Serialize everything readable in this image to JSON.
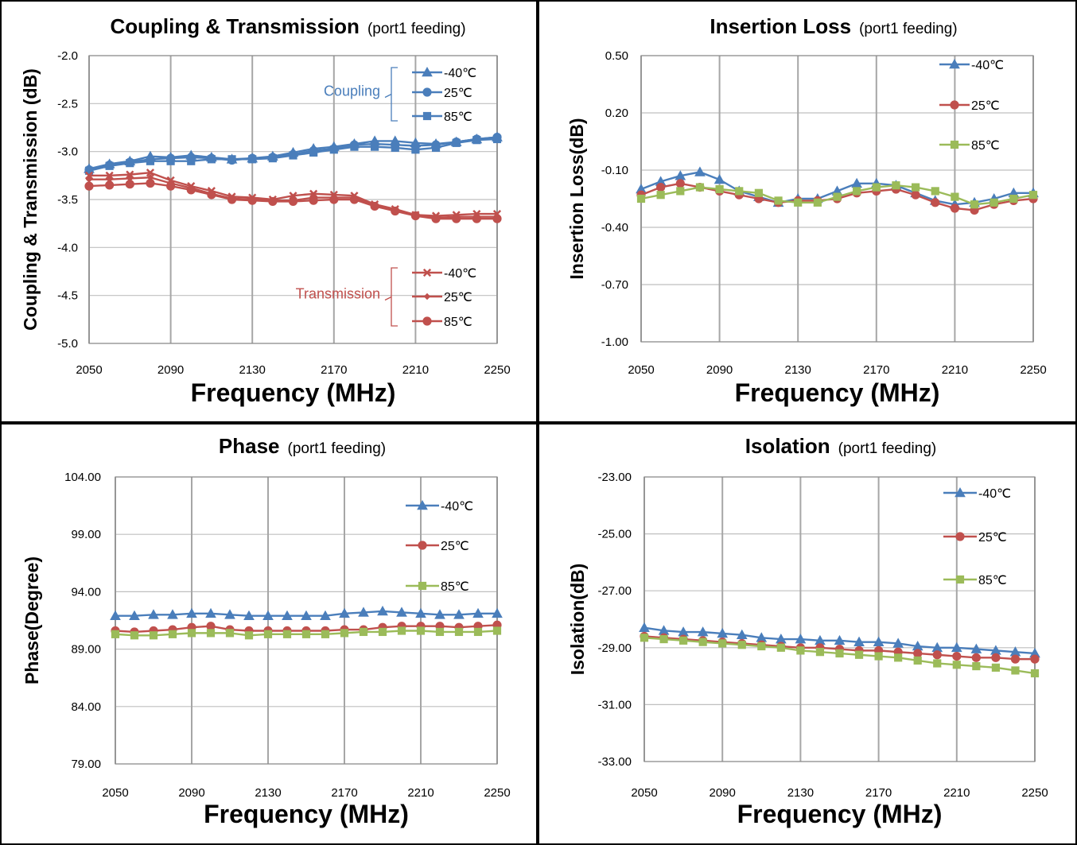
{
  "colors": {
    "blue": "#4a7ebb",
    "red": "#c0504d",
    "green": "#9bbb59"
  },
  "chart_data": [
    {
      "type": "line",
      "title": "Coupling & Transmission",
      "subtitle": "(port1 feeding)",
      "xlabel": "Frequency (MHz)",
      "ylabel": "Coupling & Transmission (dB)",
      "xlim": [
        2050,
        2250
      ],
      "ylim": [
        -5.0,
        -2.0
      ],
      "x_ticks": [
        2050,
        2090,
        2130,
        2170,
        2210,
        2250
      ],
      "x_tick_labels": [
        "2050",
        "2090",
        "2130",
        "2170",
        "2210",
        "2250"
      ],
      "y_ticks": [
        -2.0,
        -2.5,
        -3.0,
        -3.5,
        -4.0,
        -4.5,
        -5.0
      ],
      "y_tick_labels": [
        "-2.0",
        "-2.5",
        "-3.0",
        "-3.5",
        "-4.0",
        "-4.5",
        "-5.0"
      ],
      "grid": true,
      "legend_position": "right",
      "legend_groups": [
        {
          "label": "Coupling",
          "color": "#4a7ebb",
          "series": [
            0,
            1,
            2
          ]
        },
        {
          "label": "Transmission",
          "color": "#c0504d",
          "series": [
            3,
            4,
            5
          ]
        }
      ],
      "x": [
        2050,
        2060,
        2070,
        2080,
        2090,
        2100,
        2110,
        2120,
        2130,
        2140,
        2150,
        2160,
        2170,
        2180,
        2190,
        2200,
        2210,
        2220,
        2230,
        2240,
        2250
      ],
      "series": [
        {
          "name": "-40℃",
          "color": "#4a7ebb",
          "marker": "triangle",
          "values": [
            -3.18,
            -3.13,
            -3.1,
            -3.05,
            -3.06,
            -3.04,
            -3.06,
            -3.08,
            -3.07,
            -3.05,
            -3.01,
            -2.97,
            -2.95,
            -2.92,
            -2.89,
            -2.89,
            -2.91,
            -2.92,
            -2.9,
            -2.87,
            -2.85
          ]
        },
        {
          "name": "25℃",
          "color": "#4a7ebb",
          "marker": "circle",
          "values": [
            -3.19,
            -3.14,
            -3.11,
            -3.08,
            -3.07,
            -3.06,
            -3.07,
            -3.09,
            -3.07,
            -3.06,
            -3.03,
            -2.99,
            -2.97,
            -2.93,
            -2.92,
            -2.93,
            -2.94,
            -2.93,
            -2.9,
            -2.87,
            -2.85
          ]
        },
        {
          "name": "85℃",
          "color": "#4a7ebb",
          "marker": "square",
          "values": [
            -3.2,
            -3.15,
            -3.12,
            -3.1,
            -3.1,
            -3.1,
            -3.08,
            -3.08,
            -3.08,
            -3.07,
            -3.04,
            -3.01,
            -2.98,
            -2.95,
            -2.95,
            -2.96,
            -2.98,
            -2.96,
            -2.91,
            -2.88,
            -2.87
          ]
        },
        {
          "name": "-40℃",
          "color": "#c0504d",
          "marker": "x",
          "values": [
            -3.25,
            -3.25,
            -3.24,
            -3.22,
            -3.3,
            -3.36,
            -3.41,
            -3.47,
            -3.48,
            -3.5,
            -3.46,
            -3.44,
            -3.45,
            -3.46,
            -3.55,
            -3.6,
            -3.66,
            -3.67,
            -3.66,
            -3.65,
            -3.65
          ]
        },
        {
          "name": "25℃",
          "color": "#c0504d",
          "marker": "diamond",
          "values": [
            -3.29,
            -3.29,
            -3.28,
            -3.27,
            -3.33,
            -3.38,
            -3.44,
            -3.49,
            -3.5,
            -3.51,
            -3.51,
            -3.48,
            -3.48,
            -3.48,
            -3.56,
            -3.61,
            -3.66,
            -3.69,
            -3.68,
            -3.68,
            -3.68
          ]
        },
        {
          "name": "85℃",
          "color": "#c0504d",
          "marker": "circle",
          "values": [
            -3.36,
            -3.35,
            -3.34,
            -3.33,
            -3.36,
            -3.4,
            -3.45,
            -3.5,
            -3.51,
            -3.52,
            -3.52,
            -3.51,
            -3.5,
            -3.5,
            -3.57,
            -3.62,
            -3.67,
            -3.7,
            -3.7,
            -3.7,
            -3.7
          ]
        }
      ]
    },
    {
      "type": "line",
      "title": "Insertion Loss",
      "subtitle": "(port1 feeding)",
      "xlabel": "Frequency (MHz)",
      "ylabel": "Insertion Loss(dB)",
      "xlim": [
        2050,
        2250
      ],
      "ylim": [
        -1.0,
        0.5
      ],
      "x_ticks": [
        2050,
        2090,
        2130,
        2170,
        2210,
        2250
      ],
      "x_tick_labels": [
        "2050",
        "2090",
        "2130",
        "2170",
        "2210",
        "2250"
      ],
      "y_ticks": [
        0.5,
        0.2,
        -0.1,
        -0.4,
        -0.7,
        -1.0
      ],
      "y_tick_labels": [
        "0.50",
        "0.20",
        "-0.10",
        "-0.40",
        "-0.70",
        "-1.00"
      ],
      "grid": true,
      "legend_position": "top-right",
      "x": [
        2050,
        2060,
        2070,
        2080,
        2090,
        2100,
        2110,
        2120,
        2130,
        2140,
        2150,
        2160,
        2170,
        2180,
        2190,
        2200,
        2210,
        2220,
        2230,
        2240,
        2250
      ],
      "series": [
        {
          "name": "-40℃",
          "color": "#4a7ebb",
          "marker": "triangle",
          "values": [
            -0.2,
            -0.16,
            -0.13,
            -0.11,
            -0.15,
            -0.21,
            -0.24,
            -0.27,
            -0.25,
            -0.25,
            -0.21,
            -0.17,
            -0.17,
            -0.18,
            -0.22,
            -0.26,
            -0.28,
            -0.27,
            -0.25,
            -0.22,
            -0.22
          ]
        },
        {
          "name": "25℃",
          "color": "#c0504d",
          "marker": "circle",
          "values": [
            -0.23,
            -0.19,
            -0.17,
            -0.19,
            -0.21,
            -0.23,
            -0.25,
            -0.27,
            -0.26,
            -0.26,
            -0.25,
            -0.22,
            -0.21,
            -0.2,
            -0.23,
            -0.27,
            -0.3,
            -0.31,
            -0.28,
            -0.26,
            -0.25
          ]
        },
        {
          "name": "85℃",
          "color": "#9bbb59",
          "marker": "square",
          "values": [
            -0.25,
            -0.23,
            -0.21,
            -0.19,
            -0.2,
            -0.21,
            -0.22,
            -0.26,
            -0.27,
            -0.27,
            -0.24,
            -0.21,
            -0.19,
            -0.18,
            -0.19,
            -0.21,
            -0.24,
            -0.28,
            -0.27,
            -0.25,
            -0.23
          ]
        }
      ]
    },
    {
      "type": "line",
      "title": "Phase",
      "subtitle": "(port1 feeding)",
      "xlabel": "Frequency (MHz)",
      "ylabel": "Phase(Degree)",
      "xlim": [
        2050,
        2250
      ],
      "ylim": [
        79,
        104
      ],
      "x_ticks": [
        2050,
        2090,
        2130,
        2170,
        2210,
        2250
      ],
      "x_tick_labels": [
        "2050",
        "2090",
        "2130",
        "2170",
        "2210",
        "2250"
      ],
      "y_ticks": [
        104,
        99,
        94,
        89,
        84,
        79
      ],
      "y_tick_labels": [
        "104.00",
        "99.00",
        "94.00",
        "89.00",
        "84.00",
        "79.00"
      ],
      "grid": true,
      "legend_position": "top-right",
      "x": [
        2050,
        2060,
        2070,
        2080,
        2090,
        2100,
        2110,
        2120,
        2130,
        2140,
        2150,
        2160,
        2170,
        2180,
        2190,
        2200,
        2210,
        2220,
        2230,
        2240,
        2250
      ],
      "series": [
        {
          "name": "-40℃",
          "color": "#4a7ebb",
          "marker": "triangle",
          "values": [
            91.9,
            91.9,
            92.0,
            92.0,
            92.1,
            92.1,
            92.0,
            91.9,
            91.9,
            91.9,
            91.9,
            91.9,
            92.1,
            92.2,
            92.3,
            92.2,
            92.1,
            92.0,
            92.0,
            92.1,
            92.1
          ]
        },
        {
          "name": "25℃",
          "color": "#c0504d",
          "marker": "circle",
          "values": [
            90.6,
            90.5,
            90.6,
            90.7,
            90.9,
            91.0,
            90.7,
            90.6,
            90.6,
            90.6,
            90.6,
            90.6,
            90.7,
            90.7,
            90.9,
            91.0,
            91.0,
            91.0,
            90.9,
            91.0,
            91.1
          ]
        },
        {
          "name": "85℃",
          "color": "#9bbb59",
          "marker": "square",
          "values": [
            90.3,
            90.2,
            90.2,
            90.3,
            90.4,
            90.4,
            90.4,
            90.2,
            90.3,
            90.3,
            90.3,
            90.3,
            90.4,
            90.5,
            90.5,
            90.6,
            90.6,
            90.5,
            90.5,
            90.5,
            90.6
          ]
        }
      ]
    },
    {
      "type": "line",
      "title": "Isolation",
      "subtitle": "(port1 feeding)",
      "xlabel": "Frequency (MHz)",
      "ylabel": "Isolation(dB)",
      "xlim": [
        2050,
        2250
      ],
      "ylim": [
        -33,
        -23
      ],
      "x_ticks": [
        2050,
        2090,
        2130,
        2170,
        2210,
        2250
      ],
      "x_tick_labels": [
        "2050",
        "2090",
        "2130",
        "2170",
        "2210",
        "2250"
      ],
      "y_ticks": [
        -23,
        -25,
        -27,
        -29,
        -31,
        -33
      ],
      "y_tick_labels": [
        "-23.00",
        "-25.00",
        "-27.00",
        "-29.00",
        "-31.00",
        "-33.00"
      ],
      "grid": true,
      "legend_position": "top-right",
      "x": [
        2050,
        2060,
        2070,
        2080,
        2090,
        2100,
        2110,
        2120,
        2130,
        2140,
        2150,
        2160,
        2170,
        2180,
        2190,
        2200,
        2210,
        2220,
        2230,
        2240,
        2250
      ],
      "series": [
        {
          "name": "-40℃",
          "color": "#4a7ebb",
          "marker": "triangle",
          "values": [
            -28.3,
            -28.4,
            -28.45,
            -28.45,
            -28.5,
            -28.55,
            -28.65,
            -28.7,
            -28.7,
            -28.75,
            -28.75,
            -28.8,
            -28.8,
            -28.85,
            -28.95,
            -29.0,
            -29.0,
            -29.05,
            -29.1,
            -29.15,
            -29.2
          ]
        },
        {
          "name": "25℃",
          "color": "#c0504d",
          "marker": "circle",
          "values": [
            -28.6,
            -28.65,
            -28.7,
            -28.75,
            -28.8,
            -28.85,
            -28.9,
            -28.95,
            -29.0,
            -29.0,
            -29.05,
            -29.1,
            -29.1,
            -29.15,
            -29.2,
            -29.25,
            -29.3,
            -29.35,
            -29.35,
            -29.4,
            -29.4
          ]
        },
        {
          "name": "85℃",
          "color": "#9bbb59",
          "marker": "square",
          "values": [
            -28.65,
            -28.7,
            -28.75,
            -28.8,
            -28.85,
            -28.9,
            -28.95,
            -29.0,
            -29.1,
            -29.15,
            -29.2,
            -29.25,
            -29.3,
            -29.35,
            -29.45,
            -29.55,
            -29.6,
            -29.65,
            -29.7,
            -29.8,
            -29.9
          ]
        }
      ]
    }
  ]
}
